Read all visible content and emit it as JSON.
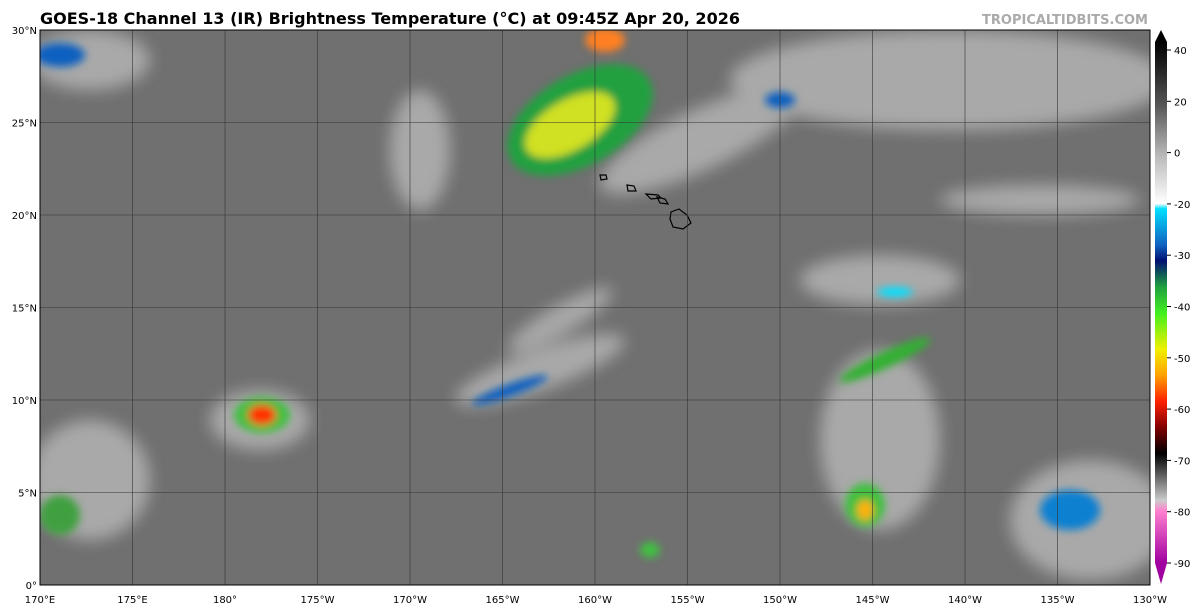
{
  "header": {
    "title": "GOES-18 Channel 13 (IR) Brightness Temperature (°C) at 09:45Z Apr 20, 2026",
    "credit": "TROPICALTIDBITS.COM"
  },
  "map": {
    "lat_labels": [
      "30°N",
      "25°N",
      "20°N",
      "15°N",
      "10°N",
      "5°N",
      "0°"
    ],
    "lon_labels": [
      "170°E",
      "175°E",
      "180°",
      "175°W",
      "170°W",
      "165°W",
      "160°W",
      "155°W",
      "150°W",
      "145°W",
      "140°W",
      "135°W",
      "130°W"
    ]
  },
  "colorbar": {
    "ticks": [
      "40",
      "20",
      "0",
      "-20",
      "-30",
      "-40",
      "-50",
      "-60",
      "-70",
      "-80",
      "-90"
    ]
  }
}
